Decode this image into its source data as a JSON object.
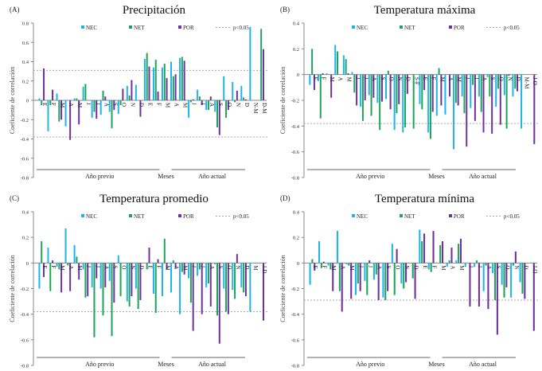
{
  "series_names": [
    "NEC",
    "NET",
    "POR"
  ],
  "colors": {
    "NEC": "#1fb4e8",
    "NET": "#1fa35a",
    "POR": "#7030a0",
    "sig": "#aaaaaa",
    "axis": "#888888"
  },
  "legend_sig_label": "p<0.05",
  "ylabel": "Coeficiente  de correlación",
  "group_labels": {
    "prev": "Año previo",
    "mid": "Meses",
    "curr": "Año actual"
  },
  "chart_data": [
    {
      "type": "bar",
      "panel_label": "(A)",
      "title": "Precipitación",
      "ylabel": "Coeficiente  de correlación",
      "ylim": [
        -0.8,
        0.8
      ],
      "yticks": [
        -0.8,
        -0.6,
        -0.4,
        -0.2,
        0,
        0.2,
        0.4,
        0.6,
        0.8
      ],
      "sig_threshold": [
        0.31,
        -0.38
      ],
      "categories": [
        "E",
        "F",
        "M",
        "A",
        "M",
        "J",
        "J",
        "A",
        "S",
        "O",
        "N",
        "D",
        "E",
        "F",
        "M",
        "A",
        "M",
        "J",
        "J",
        "A",
        "S",
        "O",
        "N",
        "D",
        "N-M",
        "D-M"
      ],
      "series": [
        {
          "name": "NEC",
          "values": [
            0.02,
            -0.32,
            0.07,
            -0.27,
            0.02,
            0.14,
            -0.18,
            -0.15,
            -0.12,
            -0.14,
            0.15,
            0.16,
            0.43,
            0.34,
            0.34,
            0.4,
            0.44,
            -0.18,
            0.11,
            -0.1,
            -0.12,
            0.25,
            0.19,
            0.15,
            0.76,
            0
          ]
        },
        {
          "name": "NET",
          "values": [
            -0.05,
            -0.05,
            -0.22,
            0,
            0.02,
            0.17,
            -0.12,
            0.1,
            -0.29,
            -0.05,
            0.05,
            0,
            0.49,
            0.42,
            0.38,
            0.25,
            0.45,
            -0.02,
            0.04,
            -0.1,
            -0.28,
            -0.18,
            -0.02,
            0.03,
            0,
            0.74
          ]
        },
        {
          "name": "POR",
          "values": [
            0.33,
            0.11,
            -0.2,
            -0.41,
            -0.25,
            0,
            -0.19,
            0.04,
            -0.1,
            0.12,
            0.21,
            -0.17,
            0.35,
            0.09,
            0.23,
            0.27,
            0.41,
            0.01,
            -0.05,
            0.04,
            -0.36,
            -0.1,
            0.1,
            0.01,
            0,
            0.53
          ]
        }
      ]
    },
    {
      "type": "bar",
      "panel_label": "(B)",
      "title": "Temperatura máxima",
      "ylabel": "Coeficiente  de correlación",
      "ylim": [
        -0.8,
        0.4
      ],
      "yticks": [
        -0.8,
        -0.6,
        -0.4,
        -0.2,
        0,
        0.2,
        0.4
      ],
      "sig_threshold": [
        -0.38
      ],
      "categories": [
        "E",
        "F",
        "M",
        "A",
        "M",
        "J",
        "J",
        "A",
        "S",
        "O",
        "N",
        "D",
        "S-F",
        "E",
        "F",
        "M",
        "A",
        "M",
        "J",
        "J",
        "A",
        "S",
        "O",
        "N",
        "D",
        "M-M",
        "J-O"
      ],
      "series": [
        {
          "name": "NEC",
          "values": [
            -0.08,
            -0.05,
            0.01,
            0.23,
            0.15,
            0.02,
            -0.25,
            -0.16,
            -0.22,
            -0.19,
            -0.43,
            -0.45,
            0,
            -0.23,
            -0.45,
            -0.32,
            -0.31,
            -0.58,
            -0.17,
            -0.26,
            -0.17,
            -0.02,
            -0.25,
            -0.16,
            -0.17,
            -0.42,
            0
          ]
        },
        {
          "name": "NET",
          "values": [
            0.2,
            -0.34,
            0,
            0.18,
            0.12,
            -0.14,
            -0.36,
            -0.32,
            -0.43,
            0.03,
            -0.3,
            -0.41,
            -0.42,
            -0.27,
            -0.5,
            0.05,
            0,
            -0.22,
            -0.3,
            -0.08,
            -0.29,
            -0.17,
            -0.11,
            -0.42,
            -0.11,
            0,
            0
          ]
        },
        {
          "name": "POR",
          "values": [
            -0.12,
            0.01,
            -0.18,
            0,
            0.01,
            -0.24,
            -0.2,
            -0.18,
            -0.21,
            -0.27,
            -0.23,
            -0.15,
            0,
            -0.12,
            -0.29,
            -0.24,
            -0.17,
            -0.24,
            -0.56,
            -0.36,
            -0.45,
            -0.46,
            -0.39,
            -0.01,
            -0.13,
            0,
            -0.54
          ]
        }
      ]
    },
    {
      "type": "bar",
      "panel_label": "(C)",
      "title": "Temperatura promedio",
      "ylabel": "Coeficiente  de correlación",
      "ylim": [
        -0.8,
        0.4
      ],
      "yticks": [
        -0.8,
        -0.6,
        -0.4,
        -0.2,
        0,
        0.2,
        0.4
      ],
      "sig_threshold": [
        -0.38
      ],
      "categories": [
        "E",
        "F",
        "M",
        "A",
        "M",
        "J",
        "J",
        "A",
        "S",
        "O",
        "N",
        "D",
        "E",
        "F",
        "M",
        "A",
        "M",
        "J",
        "J",
        "A",
        "S",
        "O",
        "N",
        "D",
        "M",
        "J-D"
      ],
      "series": [
        {
          "name": "NEC",
          "values": [
            -0.2,
            0.12,
            -0.03,
            0.27,
            0.14,
            -0.05,
            -0.19,
            -0.2,
            -0.14,
            0.06,
            -0.3,
            -0.2,
            0,
            -0.24,
            -0.26,
            -0.23,
            -0.4,
            -0.12,
            -0.1,
            -0.19,
            -0.01,
            -0.2,
            -0.21,
            -0.19,
            -0.38,
            0
          ]
        },
        {
          "name": "NET",
          "values": [
            0.17,
            -0.22,
            -0.05,
            -0.02,
            0.05,
            -0.27,
            -0.58,
            -0.41,
            -0.57,
            -0.26,
            -0.34,
            -0.36,
            -0.05,
            -0.39,
            0.19,
            0.02,
            -0.07,
            -0.31,
            -0.05,
            -0.16,
            -0.41,
            -0.38,
            -0.28,
            -0.23,
            0,
            0
          ]
        },
        {
          "name": "POR",
          "values": [
            -0.11,
            0.02,
            -0.23,
            -0.22,
            -0.13,
            -0.26,
            -0.12,
            -0.19,
            -0.31,
            0,
            -0.26,
            -0.29,
            0.12,
            0.03,
            -0.05,
            -0.04,
            -0.09,
            -0.53,
            -0.4,
            -0.34,
            -0.63,
            -0.4,
            0.07,
            -0.26,
            0,
            -0.45
          ]
        }
      ]
    },
    {
      "type": "bar",
      "panel_label": "(D)",
      "title": "Temperatura mínima",
      "ylabel": "Coeficiente  de correlación",
      "ylim": [
        -0.8,
        0.4
      ],
      "yticks": [
        -0.8,
        -0.6,
        -0.4,
        -0.2,
        0,
        0.2,
        0.4
      ],
      "sig_threshold": [
        -0.29
      ],
      "categories": [
        "E",
        "F",
        "M",
        "A",
        "M",
        "J",
        "J",
        "A",
        "S",
        "O",
        "N",
        "D",
        "E",
        "F",
        "M",
        "A",
        "M",
        "J",
        "J",
        "A",
        "S",
        "O",
        "N",
        "D",
        "J-O"
      ],
      "series": [
        {
          "name": "NEC",
          "values": [
            -0.17,
            0.17,
            -0.02,
            0.25,
            -0.01,
            -0.25,
            -0.14,
            -0.13,
            -0.27,
            0.15,
            -0.16,
            0,
            0.26,
            -0.05,
            0,
            -0.03,
            0.02,
            -0.03,
            -0.03,
            -0.22,
            -0.08,
            -0.17,
            -0.27,
            -0.15,
            0
          ]
        },
        {
          "name": "NET",
          "values": [
            0.03,
            -0.04,
            -0.05,
            -0.22,
            -0.02,
            -0.16,
            -0.25,
            -0.09,
            -0.29,
            -0.25,
            -0.2,
            -0.12,
            0.17,
            -0.07,
            0.14,
            0.02,
            0.15,
            0,
            0.02,
            -0.02,
            -0.29,
            -0.27,
            -0.02,
            -0.24,
            0
          ]
        },
        {
          "name": "POR",
          "values": [
            -0.06,
            0.01,
            -0.22,
            -0.38,
            -0.28,
            -0.22,
            0.02,
            -0.29,
            -0.22,
            0.11,
            -0.15,
            -0.28,
            0.23,
            0.25,
            0.17,
            0.12,
            0.19,
            -0.34,
            -0.34,
            -0.36,
            -0.56,
            -0.19,
            0.09,
            -0.28,
            -0.53
          ]
        }
      ]
    }
  ]
}
